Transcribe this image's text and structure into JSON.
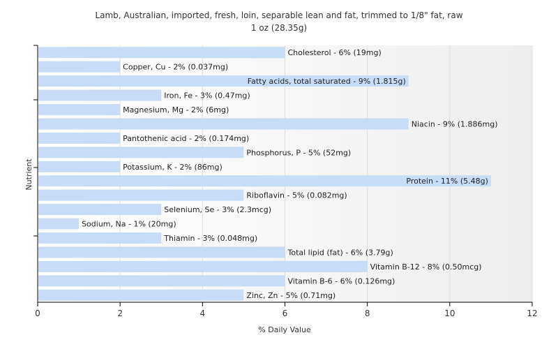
{
  "chart_data": {
    "type": "bar",
    "orientation": "horizontal",
    "title": "Lamb, Australian, imported, fresh, loin, separable lean and fat, trimmed to 1/8\" fat, raw",
    "subtitle": "1 oz (28.35g)",
    "xlabel": "% Daily Value",
    "ylabel": "Nutrient",
    "xlim": [
      0,
      12
    ],
    "xticks": [
      "0",
      "2",
      "4",
      "6",
      "8",
      "10",
      "12"
    ],
    "bar_color": "#c6dcf7",
    "grid": true,
    "categories": [
      "Cholesterol",
      "Copper, Cu",
      "Fatty acids, total saturated",
      "Iron, Fe",
      "Magnesium, Mg",
      "Niacin",
      "Pantothenic acid",
      "Phosphorus, P",
      "Potassium, K",
      "Protein",
      "Riboflavin",
      "Selenium, Se",
      "Sodium, Na",
      "Thiamin",
      "Total lipid (fat)",
      "Vitamin B-12",
      "Vitamin B-6",
      "Zinc, Zn"
    ],
    "values": [
      6,
      2,
      9,
      3,
      2,
      9,
      2,
      5,
      2,
      11,
      5,
      3,
      1,
      3,
      6,
      8,
      6,
      5
    ],
    "labels": [
      "Cholesterol - 6% (19mg)",
      "Copper, Cu - 2% (0.037mg)",
      "Fatty acids, total saturated - 9% (1.815g)",
      "Iron, Fe - 3% (0.47mg)",
      "Magnesium, Mg - 2% (6mg)",
      "Niacin - 9% (1.886mg)",
      "Pantothenic acid - 2% (0.174mg)",
      "Phosphorus, P - 5% (52mg)",
      "Potassium, K - 2% (86mg)",
      "Protein - 11% (5.48g)",
      "Riboflavin - 5% (0.082mg)",
      "Selenium, Se - 3% (2.3mcg)",
      "Sodium, Na - 1% (20mg)",
      "Thiamin - 3% (0.048mg)",
      "Total lipid (fat) - 6% (3.79g)",
      "Vitamin B-12 - 8% (0.50mcg)",
      "Vitamin B-6 - 6% (0.126mg)",
      "Zinc, Zn - 5% (0.71mg)"
    ]
  }
}
